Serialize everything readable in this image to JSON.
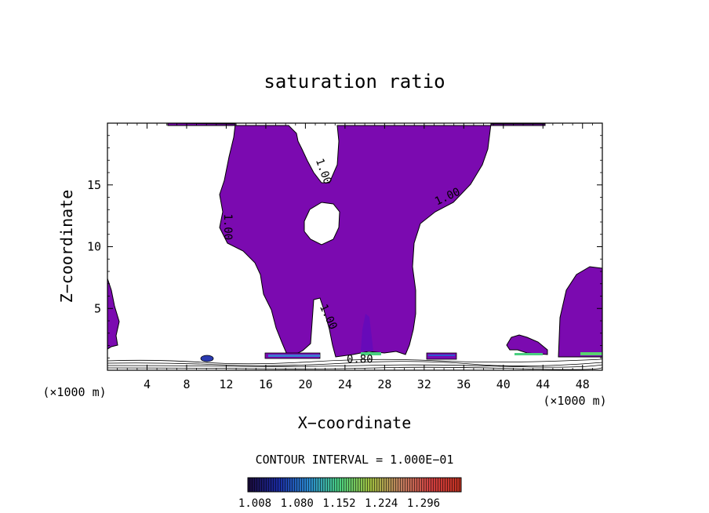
{
  "chart_data": {
    "type": "contour",
    "title": "saturation ratio",
    "xlabel": "X−coordinate",
    "ylabel": "Z−coordinate",
    "x_unit_left": "(×1000 m)",
    "x_unit_right": "(×1000 m)",
    "xlim": [
      0,
      50
    ],
    "ylim": [
      0,
      20
    ],
    "x_ticks": [
      4,
      8,
      12,
      16,
      20,
      24,
      28,
      32,
      36,
      40,
      44,
      48
    ],
    "y_ticks": [
      5,
      10,
      15
    ],
    "contour_interval_text": "CONTOUR INTERVAL = 1.000E−01",
    "contour_labels": [
      {
        "text": "1.00",
        "x": 21.5,
        "z": 16.0,
        "angle": 70
      },
      {
        "text": "1.00",
        "x": 34.5,
        "z": 13.8,
        "angle": -25
      },
      {
        "text": "1.00",
        "x": 11.8,
        "z": 11.6,
        "angle": 90
      },
      {
        "text": "1.00",
        "x": 22.0,
        "z": 4.2,
        "angle": 65
      },
      {
        "text": "0.80",
        "x": 25.5,
        "z": 0.6,
        "angle": 0
      }
    ],
    "fill_color": "#7b0ab0",
    "colorbar": {
      "tick_labels": [
        "1.008",
        "1.080",
        "1.152",
        "1.224",
        "1.296"
      ],
      "stops": [
        "#1a0a3a",
        "#1a2aa0",
        "#2a8ad0",
        "#4ad080",
        "#a0c040",
        "#c08060",
        "#d04040",
        "#c03020"
      ]
    }
  }
}
